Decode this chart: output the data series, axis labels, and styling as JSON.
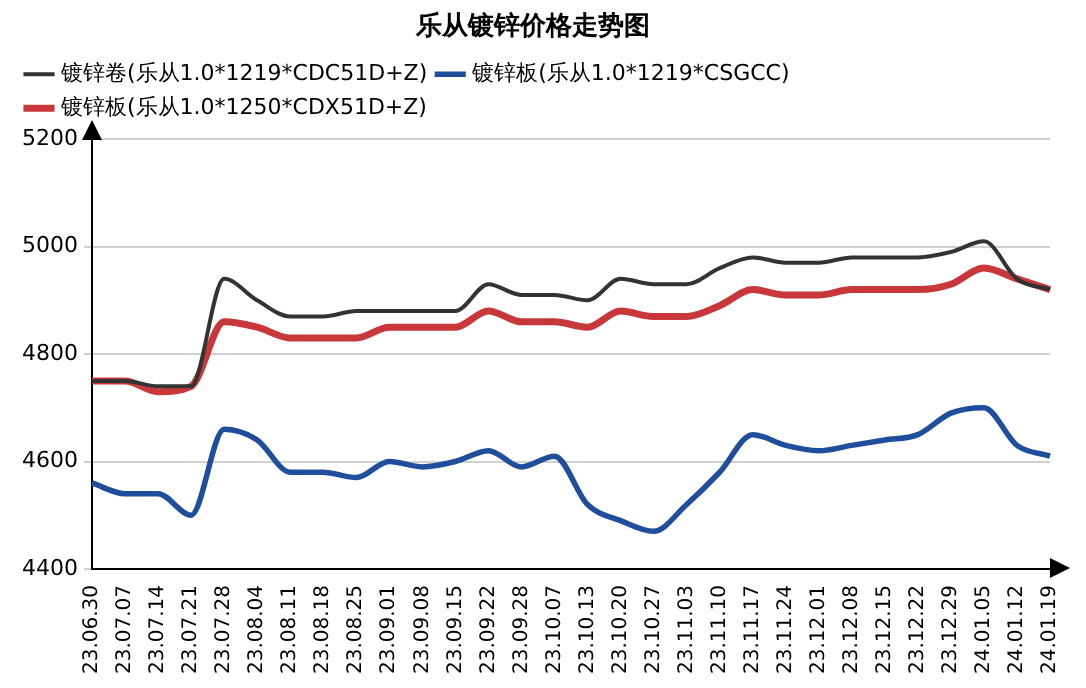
{
  "chart_data": {
    "type": "line",
    "title": "乐从镀锌价格走势图",
    "categories": [
      "23.06.30",
      "23.07.07",
      "23.07.14",
      "23.07.21",
      "23.07.28",
      "23.08.04",
      "23.08.11",
      "23.08.18",
      "23.08.25",
      "23.09.01",
      "23.09.08",
      "23.09.15",
      "23.09.22",
      "23.09.28",
      "23.10.07",
      "23.10.13",
      "23.10.20",
      "23.10.27",
      "23.11.03",
      "23.11.10",
      "23.11.17",
      "23.11.24",
      "23.12.01",
      "23.12.08",
      "23.12.15",
      "23.12.22",
      "23.12.29",
      "24.01.05",
      "24.01.12",
      "24.01.19"
    ],
    "series": [
      {
        "name": "镀锌卷(乐从1.0*1219*CDC51D+Z)",
        "color": "#333333",
        "values": [
          4750,
          4750,
          4740,
          4740,
          4940,
          4900,
          4870,
          4870,
          4880,
          4880,
          4880,
          4880,
          4930,
          4910,
          4910,
          4900,
          4940,
          4930,
          4930,
          4960,
          4980,
          4970,
          4970,
          4980,
          4980,
          4980,
          4990,
          5010,
          4940,
          4920
        ]
      },
      {
        "name": "镀锌板(乐从1.0*1219*CSGCC)",
        "color": "#1f4e9c",
        "values": [
          4560,
          4540,
          4540,
          4500,
          4660,
          4640,
          4580,
          4580,
          4570,
          4600,
          4590,
          4600,
          4620,
          4590,
          4610,
          4520,
          4490,
          4470,
          4520,
          4580,
          4650,
          4630,
          4620,
          4630,
          4640,
          4650,
          4690,
          4700,
          4630,
          4610
        ]
      },
      {
        "name": "镀锌板(乐从1.0*1250*CDX51D+Z)",
        "color": "#c8383a",
        "values": [
          4750,
          4750,
          4730,
          4740,
          4860,
          4850,
          4830,
          4830,
          4830,
          4850,
          4850,
          4850,
          4880,
          4860,
          4860,
          4850,
          4880,
          4870,
          4870,
          4890,
          4920,
          4910,
          4910,
          4920,
          4920,
          4920,
          4930,
          4960,
          4940,
          4920
        ]
      }
    ],
    "ylim": [
      4400,
      5200
    ],
    "yticks": [
      4400,
      4600,
      4800,
      5000,
      5200
    ],
    "grid": "y",
    "legend": "top",
    "marker": "none",
    "line_style": "solid"
  }
}
